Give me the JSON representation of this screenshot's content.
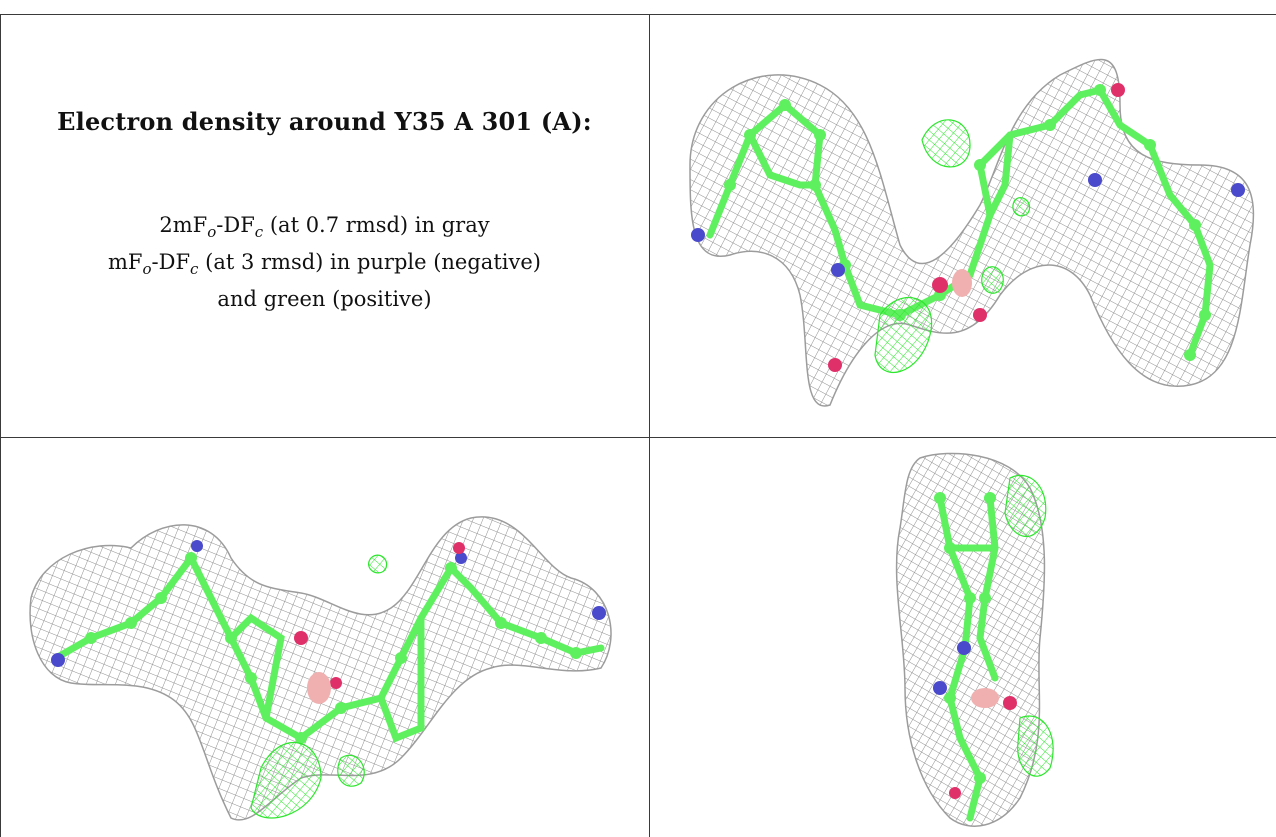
{
  "legend": {
    "title": "Electron density around Y35 A 301 (A):",
    "line1": {
      "prefix": "2mF",
      "sub1": "o",
      "mid": "-DF",
      "sub2": "c",
      "suffix": " (at 0.7 rmsd) in gray"
    },
    "line2": {
      "prefix": "mF",
      "sub1": "o",
      "mid": "-DF",
      "sub2": "c",
      "suffix": " (at 3 rmsd) in purple (negative)"
    },
    "line3": "and green (positive)"
  },
  "views": [
    {
      "name": "view-top-right"
    },
    {
      "name": "view-bottom-left"
    },
    {
      "name": "view-bottom-right"
    }
  ],
  "colors": {
    "mesh_2fofc": "#8f8f8f",
    "mesh_fofc_positive": "#2ee62e",
    "mesh_fofc_negative": "#b040c0",
    "carbon": "#5ff05f",
    "nitrogen": "#4a4acc",
    "oxygen": "#e0306a",
    "hetero_pink": "#f0b0b0"
  }
}
